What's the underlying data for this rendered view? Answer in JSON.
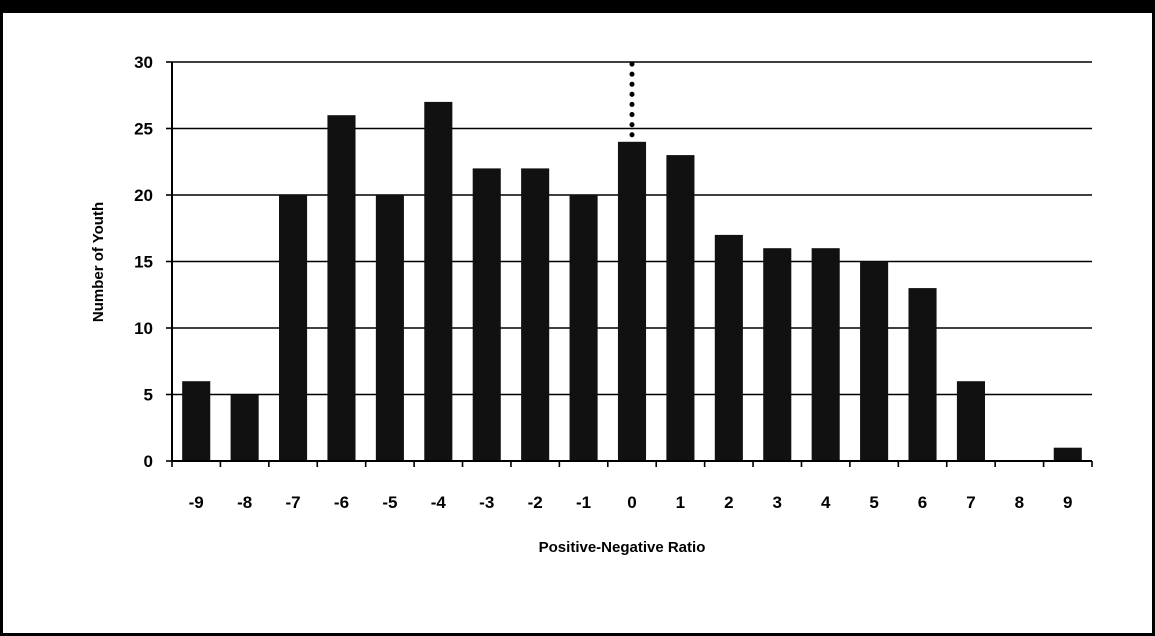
{
  "chart_data": {
    "type": "bar",
    "title": "",
    "xlabel": "Positive-Negative Ratio",
    "ylabel": "Number of Youth",
    "categories": [
      "-9",
      "-8",
      "-7",
      "-6",
      "-5",
      "-4",
      "-3",
      "-2",
      "-1",
      "0",
      "1",
      "2",
      "3",
      "4",
      "5",
      "6",
      "7",
      "8",
      "9"
    ],
    "values": [
      6,
      5,
      20,
      26,
      20,
      27,
      22,
      22,
      20,
      24,
      23,
      17,
      16,
      16,
      15,
      13,
      6,
      0,
      1
    ],
    "ylim": [
      0,
      30
    ],
    "yticks": [
      "0",
      "5",
      "10",
      "15",
      "20",
      "25",
      "30"
    ],
    "grid": true,
    "reference_line": {
      "x": "0",
      "style": "dotted"
    },
    "colors": {
      "bar": "#111111",
      "grid": "#000000",
      "background": "#ffffff"
    }
  }
}
